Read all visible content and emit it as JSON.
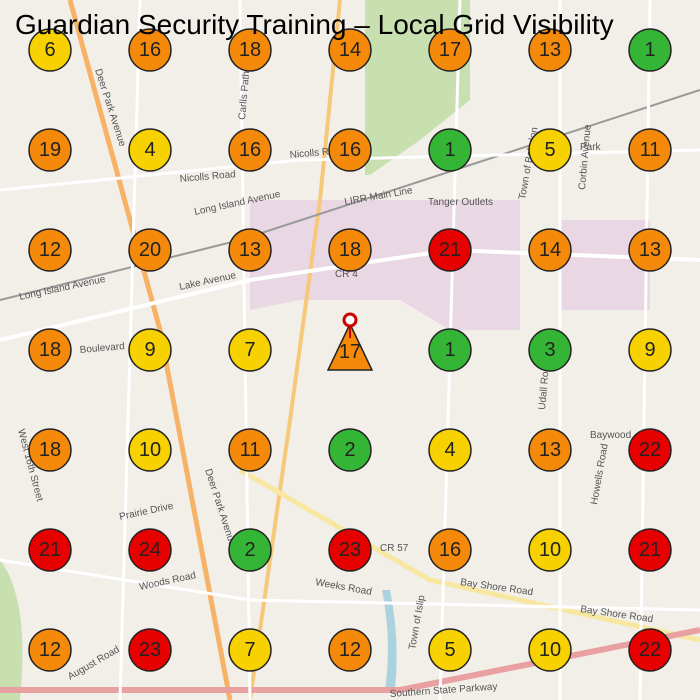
{
  "header": {
    "title": "Guardian Security Training – Local Grid Visibility"
  },
  "map_labels": [
    "Deer Park Avenue",
    "Nicolls Road",
    "Nicolls Road",
    "Long Island Avenue",
    "Long Island Avenue",
    "LIRR Main Line",
    "Tanger Outlets",
    "Lake Avenue",
    "CR 4",
    "Boulevard",
    "Prairie Drive",
    "Woods Road",
    "Weeks Road",
    "Bay Shore Road",
    "Bay Shore Road",
    "Southern State Parkway",
    "Baywood",
    "Town of Islip",
    "Town of Babylon",
    "Carlls Path",
    "Udall Road",
    "Howells Road",
    "Corbin Avenue",
    "West 16th Street",
    "August Road",
    "CR 57",
    "Park",
    "Deer Park Avenue"
  ],
  "grid": {
    "rows": [
      [
        {
          "rank": 6,
          "color": "#f7d200"
        },
        {
          "rank": 16,
          "color": "#f58a0a"
        },
        {
          "rank": 18,
          "color": "#f58a0a"
        },
        {
          "rank": 14,
          "color": "#f58a0a"
        },
        {
          "rank": 17,
          "color": "#f58a0a"
        },
        {
          "rank": 13,
          "color": "#f58a0a"
        },
        {
          "rank": 1,
          "color": "#35b535"
        }
      ],
      [
        {
          "rank": 19,
          "color": "#f58a0a"
        },
        {
          "rank": 4,
          "color": "#f7d200"
        },
        {
          "rank": 16,
          "color": "#f58a0a"
        },
        {
          "rank": 16,
          "color": "#f58a0a"
        },
        {
          "rank": 1,
          "color": "#35b535"
        },
        {
          "rank": 5,
          "color": "#f7d200"
        },
        {
          "rank": 11,
          "color": "#f58a0a"
        }
      ],
      [
        {
          "rank": 12,
          "color": "#f58a0a"
        },
        {
          "rank": 20,
          "color": "#f58a0a"
        },
        {
          "rank": 13,
          "color": "#f58a0a"
        },
        {
          "rank": 18,
          "color": "#f58a0a"
        },
        {
          "rank": 21,
          "color": "#e60000"
        },
        {
          "rank": 14,
          "color": "#f58a0a"
        },
        {
          "rank": 13,
          "color": "#f58a0a"
        }
      ],
      [
        {
          "rank": 18,
          "color": "#f58a0a"
        },
        {
          "rank": 9,
          "color": "#f7d200"
        },
        {
          "rank": 7,
          "color": "#f7d200"
        },
        {
          "rank": 17,
          "color": "#f58a0a",
          "shape": "triangle"
        },
        {
          "rank": 1,
          "color": "#35b535"
        },
        {
          "rank": 3,
          "color": "#35b535"
        },
        {
          "rank": 9,
          "color": "#f7d200"
        }
      ],
      [
        {
          "rank": 18,
          "color": "#f58a0a"
        },
        {
          "rank": 10,
          "color": "#f7d200"
        },
        {
          "rank": 11,
          "color": "#f58a0a"
        },
        {
          "rank": 2,
          "color": "#35b535"
        },
        {
          "rank": 4,
          "color": "#f7d200"
        },
        {
          "rank": 13,
          "color": "#f58a0a"
        },
        {
          "rank": 22,
          "color": "#e60000"
        }
      ],
      [
        {
          "rank": 21,
          "color": "#e60000"
        },
        {
          "rank": 24,
          "color": "#e60000"
        },
        {
          "rank": 2,
          "color": "#35b535"
        },
        {
          "rank": 23,
          "color": "#e60000"
        },
        {
          "rank": 16,
          "color": "#f58a0a"
        },
        {
          "rank": 10,
          "color": "#f7d200"
        },
        {
          "rank": 21,
          "color": "#e60000"
        }
      ],
      [
        {
          "rank": 12,
          "color": "#f58a0a"
        },
        {
          "rank": 23,
          "color": "#e60000"
        },
        {
          "rank": 7,
          "color": "#f7d200"
        },
        {
          "rank": 12,
          "color": "#f58a0a"
        },
        {
          "rank": 5,
          "color": "#f7d200"
        },
        {
          "rank": 10,
          "color": "#f7d200"
        },
        {
          "rank": 22,
          "color": "#e60000"
        }
      ]
    ]
  }
}
